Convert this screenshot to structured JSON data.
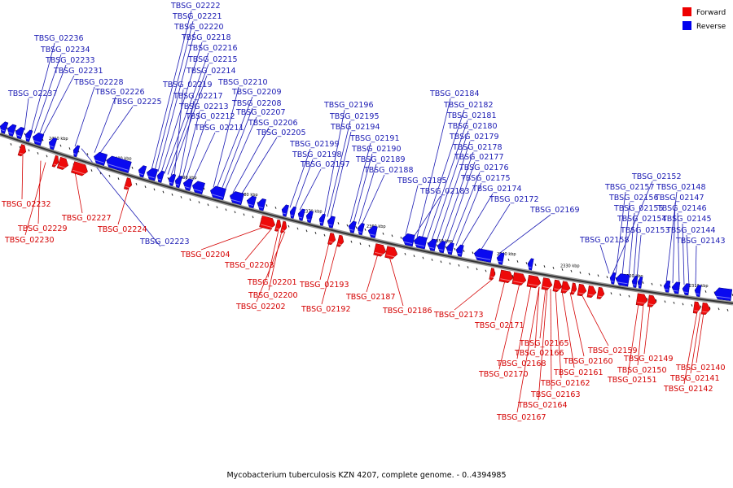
{
  "legend": [
    {
      "label": "Forward",
      "color": "#ee0000"
    },
    {
      "label": "Reverse",
      "color": "#0000ee"
    }
  ],
  "caption": "Mycobacterium tuberculosis KZN 4207, complete genome. - 0..4394985",
  "axis_ticks": [
    "2410 kbp",
    "2400 kbp",
    "2390 kbp",
    "2380 kbp",
    "2370 kbp",
    "2360 kbp",
    "2350 kbp",
    "2340 kbp",
    "2330 kbp",
    "2320 kbp",
    "2310 kbp"
  ],
  "reverse_labels": [
    "TBSG_02222",
    "TBSG_02221",
    "TBSG_02220",
    "TBSG_02218",
    "TBSG_02216",
    "TBSG_02215",
    "TBSG_02214",
    "TBSG_02210",
    "TBSG_02219",
    "TBSG_02217",
    "TBSG_02213",
    "TBSG_02212",
    "TBSG_02211",
    "TBSG_02209",
    "TBSG_02208",
    "TBSG_02207",
    "TBSG_02206",
    "TBSG_02205",
    "TBSG_02236",
    "TBSG_02234",
    "TBSG_02233",
    "TBSG_02231",
    "TBSG_02228",
    "TBSG_02226",
    "TBSG_02225",
    "TBSG_02237",
    "TBSG_02196",
    "TBSG_02195",
    "TBSG_02194",
    "TBSG_02191",
    "TBSG_02190",
    "TBSG_02189",
    "TBSG_02188",
    "TBSG_02199",
    "TBSG_02198",
    "TBSG_02197",
    "TBSG_02184",
    "TBSG_02182",
    "TBSG_02181",
    "TBSG_02180",
    "TBSG_02179",
    "TBSG_02178",
    "TBSG_02177",
    "TBSG_02176",
    "TBSG_02175",
    "TBSG_02174",
    "TBSG_02185",
    "TBSG_02183",
    "TBSG_02172",
    "TBSG_02169",
    "TBSG_02152",
    "TBSG_02157",
    "TBSG_02156",
    "TBSG_02155",
    "TBSG_02154",
    "TBSG_02153",
    "TBSG_02158",
    "TBSG_02148",
    "TBSG_02147",
    "TBSG_02146",
    "TBSG_02145",
    "TBSG_02144",
    "TBSG_02143",
    "TBSG_02223"
  ],
  "forward_labels": [
    "TBSG_02232",
    "TBSG_02229",
    "TBSG_02230",
    "TBSG_02227",
    "TBSG_02224",
    "TBSG_02204",
    "TBSG_02203",
    "TBSG_02201",
    "TBSG_02200",
    "TBSG_02202",
    "TBSG_02193",
    "TBSG_02192",
    "TBSG_02187",
    "TBSG_02186",
    "TBSG_02173",
    "TBSG_02171",
    "TBSG_02165",
    "TBSG_02166",
    "TBSG_02168",
    "TBSG_02170",
    "TBSG_02159",
    "TBSG_02160",
    "TBSG_02161",
    "TBSG_02162",
    "TBSG_02163",
    "TBSG_02164",
    "TBSG_02167",
    "TBSG_02149",
    "TBSG_02150",
    "TBSG_02151",
    "TBSG_02140",
    "TBSG_02141",
    "TBSG_02142"
  ]
}
